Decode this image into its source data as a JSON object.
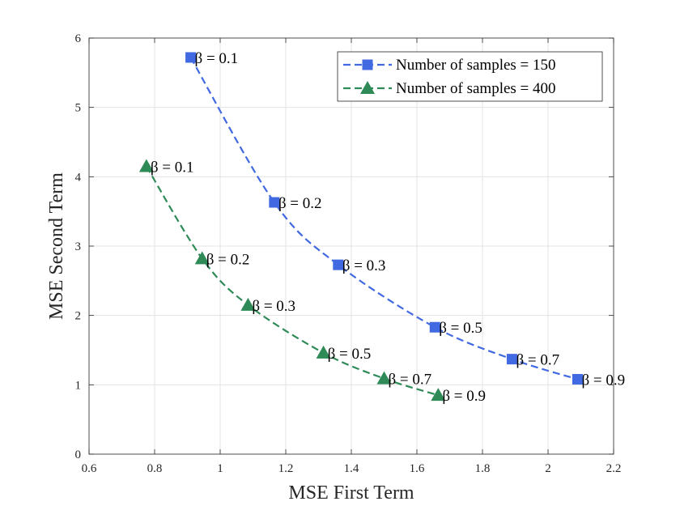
{
  "chart_data": {
    "type": "line",
    "title": "",
    "xlabel": "MSE First Term",
    "ylabel": "MSE Second Term",
    "xlim": [
      0.6,
      2.2
    ],
    "ylim": [
      0,
      6
    ],
    "xticks": [
      0.6,
      0.8,
      1,
      1.2,
      1.4,
      1.6,
      1.8,
      2,
      2.2
    ],
    "xtick_labels": [
      "0.6",
      "0.8",
      "1",
      "1.2",
      "1.4",
      "1.6",
      "1.8",
      "2",
      "2.2"
    ],
    "yticks": [
      0,
      1,
      2,
      3,
      4,
      5,
      6
    ],
    "ytick_labels": [
      "0",
      "1",
      "2",
      "3",
      "4",
      "5",
      "6"
    ],
    "grid": true,
    "legend_position": "top-right",
    "series": [
      {
        "name": "Number of samples = 150",
        "color": "#4169e1",
        "marker": "square",
        "line_style": "dashed",
        "x": [
          0.91,
          1.165,
          1.36,
          1.655,
          1.89,
          2.09
        ],
        "y": [
          5.72,
          3.63,
          2.73,
          1.83,
          1.37,
          1.08
        ],
        "point_labels": [
          "β = 0.1",
          "β = 0.2",
          "β = 0.3",
          "β = 0.5",
          "β = 0.7",
          "β = 0.9"
        ]
      },
      {
        "name": "Number of samples = 400",
        "color": "#2e8b57",
        "marker": "triangle",
        "line_style": "dashed",
        "x": [
          0.775,
          0.945,
          1.085,
          1.315,
          1.5,
          1.665
        ],
        "y": [
          4.15,
          2.82,
          2.15,
          1.46,
          1.09,
          0.85
        ],
        "point_labels": [
          "β = 0.1",
          "β = 0.2",
          "β = 0.3",
          "β = 0.5",
          "β = 0.7",
          "β = 0.9"
        ]
      }
    ]
  }
}
